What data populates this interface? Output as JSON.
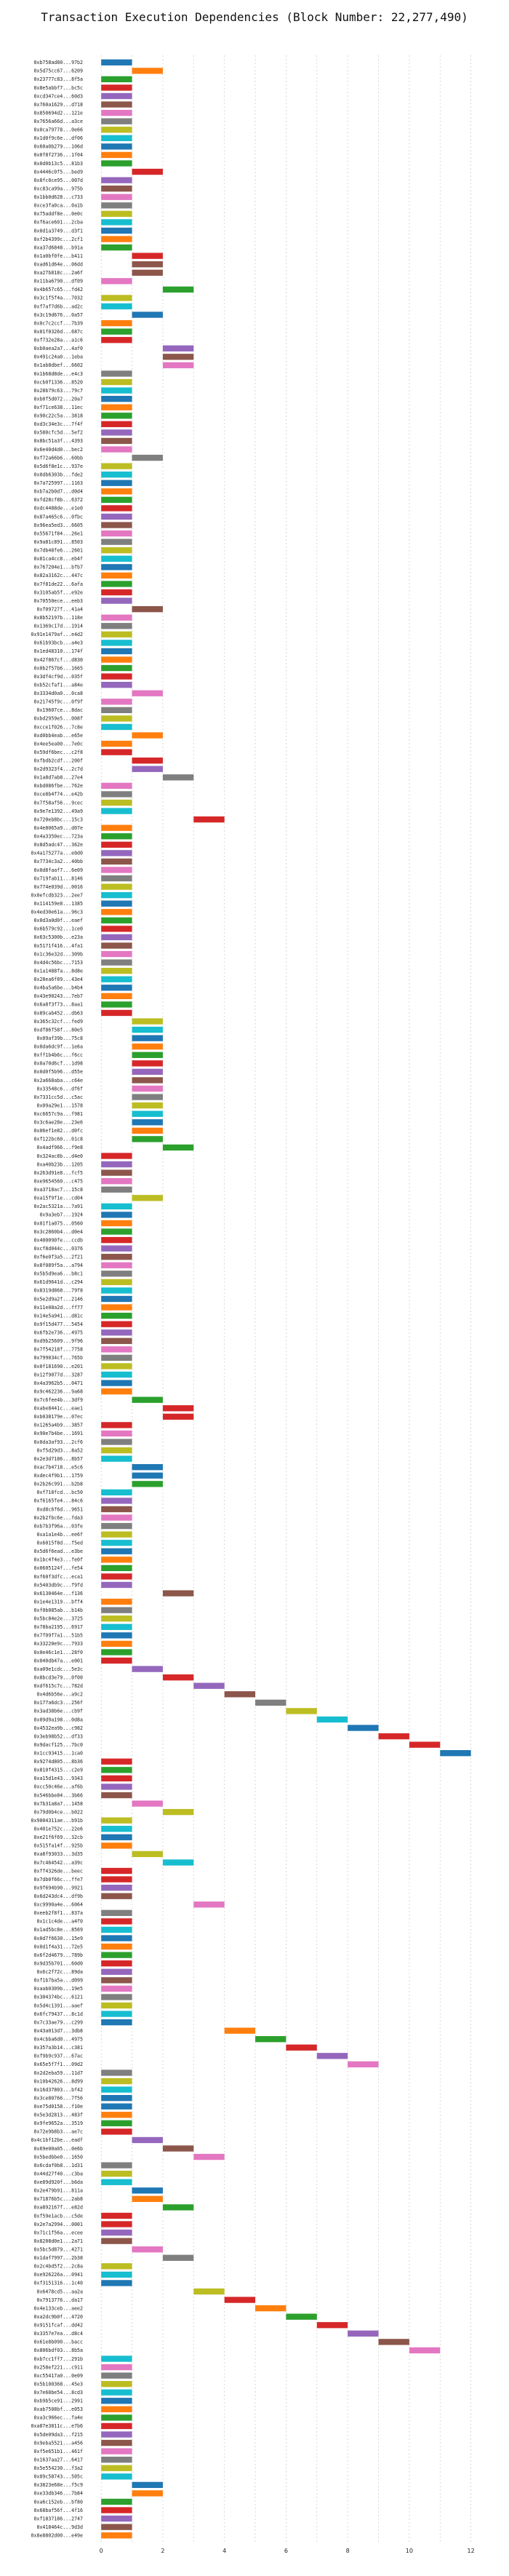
{
  "chart_data": {
    "type": "bar",
    "orientation": "horizontal-gantt",
    "title": "Transaction Execution Dependencies (Block Number: 22,277,490)",
    "xlabel": "",
    "ylabel": "",
    "xlim": [
      -0.5,
      13
    ],
    "xticks": [
      0,
      2,
      4,
      6,
      8,
      10,
      12
    ],
    "grid": true,
    "legend": "none",
    "bar_duration": 1,
    "colors": [
      "#1f77b4",
      "#ff7f0e",
      "#2ca02c",
      "#d62728",
      "#9467bd",
      "#8c564b",
      "#e377c2",
      "#7f7f7f",
      "#bcbd22",
      "#17becf"
    ],
    "tx_labels": [
      "0xb758ad80...97b2",
      "0x5d75cc67...6209",
      "0x23777c83...8f5a",
      "0x8e5abbf7...bc5c",
      "0xcd347ce4...60d3",
      "0x760a1629...d718",
      "0x850694d2...121e",
      "0x7656a66d...a3ce",
      "0x0ca79778...0e66",
      "0x1d0f9c6e...df06",
      "0x60a0b279...106d",
      "0x0f8f2736...1f04",
      "0x0d0b13c5...81b3",
      "0x4446c0f5...bed9",
      "0x8fc0ce95...007d",
      "0xc83ca99a...975b",
      "0x1bb0d628...c733",
      "0xce3fa0ca...0a1b",
      "0x75addf8e...0e0c",
      "0xf6ace601...2cba",
      "0x0d1a3749...d3f1",
      "0xf2b4399c...2cf1",
      "0xa37d6848...b91a",
      "0x1a0bf0fe...b411",
      "0xad61d64e...06dd",
      "0xa27b818c...2a6f",
      "0x11ba6790...df09",
      "0x4b657c65...fd42",
      "0x3c1f5f4a...7032",
      "0xf7af7d6b...ad2c",
      "0x3c19d676...0a57",
      "0x0c7c2ccf...7b39",
      "0x01f0326d...687c",
      "0xf732e28a...a1c6",
      "0xb0aea2a7...4af0",
      "0x491c24a0...1eba",
      "0x1ab8dbef...6602",
      "0x1b68d8de...e4c3",
      "0xcb0f1336...8520",
      "0x28b79c63...79c7",
      "0xb0f5d072...20a7",
      "0xf71ce638...11ec",
      "0x90c22c5a...3818",
      "0xd3c34e3c...7f4f",
      "0x580cfc5d...5ef2",
      "0x8bc51a3f...4393",
      "0x6e40d4d0...bec2",
      "0xf72a66b6...60bb",
      "0x5d6f8e1c...937e",
      "0x0db6303b...fde2",
      "0x7a725997...1163",
      "0xb7a2b0d7...d0d4",
      "0xfd28cf8b...6372",
      "0xdc4488de...e1e0",
      "0x87a465c6...0fbc",
      "0x96ea5ed3...6605",
      "0x55671f84...26e1",
      "0x9a81c891...8503",
      "0x7db48fe6...2601",
      "0x81ca4cc8...eb4f",
      "0x767204e1...bfb7",
      "0x82a3162c...447c",
      "0x7f81de22...6afa",
      "0x3105ab5f...e92e",
      "0x70550ece...eeb3",
      "0xf09727f...41a4",
      "0x8b52197b...118e",
      "0x1369c17d...1914",
      "0x91e1479af...e4d2",
      "0x61b93bcb...a4e3",
      "0x1ed48310...174f",
      "0x42f867cf...d830",
      "0x0b2f57b6...1665",
      "0x3df4cf9d...035f",
      "0xb52cfaf1...a84e",
      "0x3334d0a0...0ca8",
      "0x21745f9c...0f9f",
      "0x19607ce...8dac",
      "0xbd2959e5...008f",
      "0xcce1f026...7c8e",
      "0xd0bb4eab...e65e",
      "0x4ee5ea00...7e0c",
      "0x59df6bec...c2f8",
      "0xfbdb2cdf...200f",
      "0x2d9323f4...2c7d",
      "0x1a8d7ab8...27e4",
      "0xbd086fbe...762e",
      "0xce8b4f74...e42b",
      "0x7f58af56...9cec",
      "0x9e7e1392...49a9",
      "0x720eb8bc...15c3",
      "0x4e8065a9...d07e",
      "0x4a3350ec...723a",
      "0x8d5adc47...362e",
      "0x4a175277a...e0d0",
      "0x7734c3a2...40bb",
      "0x0d8faaf7...6e09",
      "0x719fab11...8146",
      "0x774e039d...0016",
      "0x0efcdb323...2ee7",
      "0x114159e8...1385",
      "0x4ed30e61a...96c3",
      "0x0d3a0d0f...eaef",
      "0x6b579c92...1ce0",
      "0x63c5300b...e23a",
      "0x5171f416...4fa1",
      "0x1c36e32d...309b",
      "0x4d4c56bc...7153",
      "0x1a1488fa...8d8e",
      "0x28ea6f89...43e4",
      "0x4ba5a6be...b4b4",
      "0x43e90243...7eb7",
      "0x6a8f3f73...8aa1",
      "0x89cab452...db63",
      "0x365c32cf...fed9",
      "0xdf86f58f...80e5",
      "0x09af39b...75c8",
      "0x0da6dc9f...1e6a",
      "0xff1b4b6c...f6cc",
      "0x0a70d6cf...1d98",
      "0x0d0f5b96...d55e",
      "0x2a668aba...c64e",
      "0x33548c6...df6f",
      "0x7331cc5d...c5ac",
      "0x09a29e1...1578",
      "0xc6657c9a...f981",
      "0x3c6ae28e...23e6",
      "0x06ef1e82...d0fc",
      "0xf122bc60...01c8",
      "0x4adf966...f9e8",
      "0x324ac8b...d4e0",
      "0xa40b23b...1205",
      "0x263d91e8...fcf5",
      "0xe9654560...c475",
      "0xa3718ac7...15c8",
      "0xa15f9f1e...cd04",
      "0x2ac5321a...7a91",
      "0x9a3eb7...1924",
      "0x01f1a075...0560",
      "0x3c2860b4...d0e4",
      "0x400090fe...ccdb",
      "0xcf8d044c...0376",
      "0xf6e0f3a5...2f21",
      "0x8f089f5a...a794",
      "0x5b5d9ea6...b8c1",
      "0x61d9641d...c294",
      "0x8319d868...79f8",
      "0x5e2d9a2f...2146",
      "0x11e08a2d...ff77",
      "0x14e5a941...d81c",
      "0x9f15d477...5454",
      "0x6fb2e736...4975",
      "0xd9b25609...9f96",
      "0x7f54218f...7758",
      "0x799034cf...765b",
      "0x0f181690...e201",
      "0x12f9077d...3287",
      "0x4a3962b5...0471",
      "0x9c462236...9a68",
      "0x7c6fee4b...3df9",
      "0xabe8441c...eae1",
      "0xb038179e...07ec",
      "0x1265a4b9...3857",
      "0x90e7b4be...1691",
      "0x0da3af93...2cf6",
      "0xf5d29d3...8a52",
      "0x2e3d7186...8b57",
      "0xac7b4718...e5c6",
      "0xdec4f9b1...1759",
      "0x2b26c991...b2b8",
      "0xf718fcd...bc50",
      "0xf6165fe4...84c6",
      "0xd8c6f6d...9651",
      "0x2b2fbc6e...fda3",
      "0xb7b3f96a...03fe",
      "0xa1a1e4b...ee6f",
      "0x6015f8d...f5ed",
      "0x5d6f6ead...e3be",
      "0x1bc4f4e3...fe0f",
      "0x0605124f...fe54",
      "0xf60f3dfc...eca1",
      "0x5403db9c...f9fd",
      "0x6130464e...f136",
      "0x1e4e1319...bff4",
      "0xf0b085ab...b14b",
      "0x5bc84e2e...3725",
      "0x78ba2195...6917",
      "0x7f09f7a1...51b5",
      "0x33220e9c...7933",
      "0x0e46c1e1...28f0",
      "0x040db47a...e001",
      "0xa09e1cdc...5e3c",
      "0x8bcd3e79...0f00",
      "0xdf615c7c...782d",
      "0x4d6b56e...a9c2",
      "0x177a6dc3...256f",
      "0x3ad38b6e...cb9f",
      "0x09d9a198...0d8a",
      "0x4532ea9b...c982",
      "0x3eb98b52...df33",
      "0x9dacf125...7bc0",
      "0x1cc93415...1ca0",
      "0x9274d805...8b36",
      "0x810f4315...c2e9",
      "0xa15d1e43...9343",
      "0xcc50c46e...af6b",
      "0x546bbe84...3b66",
      "0x7b31a8a7...1458",
      "0x79d0b4ce...b022",
      "0x9004311ae...b91b",
      "0x401e752c...22e6",
      "0xe21f6f69...32cb",
      "0x515fa14f...925b",
      "0xa8f93033...3d35",
      "0x7c464542...a39c",
      "0xff4326de...beec",
      "0x7db0f66c...ffe7",
      "0x9f694b90...9921",
      "0x6d243dc4...df9b",
      "0xc9990a4e...6064",
      "0xeeb2f8f1...837a",
      "0x1c1c4de...a4f0",
      "0x1ad5bc8e...8569",
      "0x0d7f6630...15e9",
      "0x0d1f4a31...72e5",
      "0x6f2d4679...789b",
      "0x9d35b701...60d0",
      "0x6c2f72c...89da",
      "0xf1b7ba5a...d099",
      "0xaab0309b...19e5",
      "0x304374bc...6121",
      "0x5d4c1391...aaef",
      "0x6fc79437...8c1d",
      "0x7c33ae79...c299",
      "0x43a013d7...3db8",
      "0x4cbba6d0...4975",
      "0x357a3b14...c381",
      "0xf9b9c937...67ac",
      "0x65e5f7f1...09d2",
      "0x2d2eba59...11d7",
      "0x10b42626...8d99",
      "0x16d37803...bf42",
      "0x3ce80766...7f56",
      "0xe75d0158...f10e",
      "0x5e3d2813...483f",
      "0x9fe9652a...3519",
      "0x72e9b8b3...ae7c",
      "0x4c1bf12be...eadf",
      "0x69e00a05...0e6b",
      "0x5bedbbe0...1650",
      "0x6cdaf0b8...1d31",
      "0x44d27f40...c3ba",
      "0xe89d920f...b6da",
      "0x2e479b91...811a",
      "0x71876b5c...2ab8",
      "0xa892167f...e82d",
      "0xf59e1acb...c5de",
      "0x2e7a2994...0001",
      "0x71c1f56a...ecee",
      "0x8208d0e1...2a71",
      "0x5bc5d879...4271",
      "0x1daf7997...2b38",
      "0x2c4bd5f2...2c8a",
      "0xe926226a...0941",
      "0xf3151316...1c40",
      "0x6478cd5...aa2a",
      "0x7913776...da17",
      "0x4e133ceb...aee2",
      "0xa2dc9b0f...4720",
      "0x9151fcaf...dd42",
      "0x3357e7ea...d8c4",
      "0x61e8b090...bacc",
      "0x806bdf03...8b5a",
      "0xb7cc1ff7...291b",
      "0x258ef221...c911",
      "0xc55417a0...0e09",
      "0x5b100368...45e3",
      "0x7e68be54...8cd3",
      "0xb9b5ce91...2991",
      "0xab7508bf...e053",
      "0xa3c966ec...fa4e",
      "0xa87e3811c...e7b6",
      "0x5de09da3...f215",
      "0x9eba5521...a456",
      "0xf5e651b1...461f",
      "0x1637aa27...6417",
      "0x5e554230...f3a2",
      "0x09c58743...505c",
      "0x3823e68e...f5c9",
      "0xe33db346...7b84",
      "0xa6c152eb...bf80",
      "0x68baf56f...4f16",
      "0xf1837186...2747",
      "0x418464c...9d3d",
      "0x8e8802d00...e49e"
    ],
    "start_times": [
      0,
      1,
      0,
      0,
      0,
      0,
      0,
      0,
      0,
      0,
      0,
      0,
      0,
      1,
      0,
      0,
      0,
      0,
      0,
      0,
      0,
      0,
      0,
      1,
      1,
      1,
      0,
      2,
      0,
      0,
      1,
      0,
      0,
      0,
      2,
      2,
      2,
      0,
      0,
      0,
      0,
      0,
      0,
      0,
      0,
      0,
      0,
      1,
      0,
      0,
      0,
      0,
      0,
      0,
      0,
      0,
      0,
      0,
      0,
      0,
      0,
      0,
      0,
      0,
      0,
      1,
      0,
      0,
      0,
      0,
      0,
      0,
      0,
      0,
      0,
      1,
      0,
      0,
      0,
      0,
      1,
      0,
      0,
      1,
      1,
      2,
      0,
      0,
      0,
      0,
      3,
      0,
      0,
      0,
      0,
      0,
      0,
      0,
      0,
      0,
      0,
      0,
      0,
      0,
      0,
      0,
      0,
      0,
      0,
      0,
      0,
      0,
      0,
      0,
      1,
      1,
      1,
      1,
      1,
      1,
      1,
      1,
      1,
      1,
      1,
      1,
      1,
      1,
      1,
      2,
      0,
      0,
      0,
      0,
      0,
      1,
      0,
      0,
      0,
      0,
      0,
      0,
      0,
      0,
      0,
      0,
      0,
      0,
      0,
      0,
      0,
      0,
      0,
      0,
      0,
      0,
      0,
      0,
      0,
      1,
      2,
      2,
      0,
      0,
      0,
      0,
      0,
      1,
      1,
      1,
      0,
      0,
      0,
      0,
      0,
      0,
      0,
      0,
      0,
      0,
      0,
      0,
      2,
      0,
      0,
      0,
      0,
      0,
      0,
      0,
      0,
      1,
      2,
      3,
      4,
      5,
      6,
      7,
      8,
      9,
      10,
      11,
      0,
      0,
      0,
      0,
      0,
      1,
      2,
      0,
      0,
      0,
      0,
      1,
      2,
      0,
      0,
      0,
      0,
      3,
      0,
      0,
      0,
      0,
      0,
      0,
      0,
      0,
      0,
      0,
      0,
      0,
      0,
      0,
      4,
      5,
      6,
      7,
      8,
      0,
      0,
      0,
      0,
      0,
      0,
      0,
      0,
      1,
      2,
      3,
      0,
      0,
      0,
      1,
      1,
      2,
      0,
      0,
      0,
      0,
      1,
      2,
      0,
      0,
      0,
      3,
      4,
      5,
      6,
      7,
      8,
      9,
      10,
      0,
      0,
      0,
      0,
      0,
      0,
      0,
      0,
      0,
      0,
      0,
      0,
      0,
      0,
      0,
      1,
      1,
      0
    ],
    "bar_colors": [
      0,
      1,
      2,
      3,
      4,
      5,
      6,
      7,
      8,
      9,
      0,
      1,
      2,
      3,
      4,
      5,
      6,
      7,
      8,
      9,
      0,
      1,
      2,
      3,
      5,
      5,
      6,
      2,
      8,
      9,
      0,
      1,
      2,
      3,
      4,
      5,
      6,
      7,
      8,
      9,
      0,
      1,
      2,
      3,
      4,
      5,
      6,
      7,
      8,
      9,
      0,
      1,
      2,
      3,
      4,
      5,
      6,
      7,
      8,
      9,
      0,
      1,
      2,
      3,
      4,
      5,
      6,
      7,
      8,
      9,
      0,
      1,
      2,
      3,
      4,
      6,
      6,
      7,
      8,
      9,
      1,
      1,
      3,
      3,
      4,
      7,
      6,
      7,
      8,
      9,
      3,
      1,
      2,
      3,
      4,
      5,
      6,
      7,
      8,
      9,
      0,
      1,
      2,
      3,
      4,
      5,
      6,
      7,
      8,
      9,
      0,
      1,
      2,
      3,
      8,
      9,
      0,
      1,
      2,
      3,
      4,
      5,
      6,
      7,
      8,
      9,
      0,
      1,
      2,
      2,
      3,
      4,
      5,
      6,
      7,
      8,
      9,
      0,
      1,
      2,
      3,
      4,
      5,
      6,
      7,
      8,
      9,
      0,
      1,
      2,
      3,
      4,
      5,
      6,
      7,
      8,
      9,
      0,
      1,
      2,
      3,
      3,
      3,
      6,
      7,
      8,
      9,
      0,
      0,
      2,
      9,
      4,
      5,
      6,
      7,
      8,
      9,
      0,
      1,
      2,
      3,
      4,
      5,
      1,
      7,
      8,
      9,
      0,
      1,
      2,
      3,
      4,
      3,
      4,
      5,
      7,
      8,
      9,
      0,
      3,
      3,
      0,
      3,
      2,
      3,
      4,
      5,
      6,
      8,
      8,
      9,
      0,
      1,
      8,
      9,
      3,
      3,
      4,
      5,
      6,
      7,
      3,
      9,
      0,
      1,
      2,
      3,
      4,
      5,
      6,
      7,
      8,
      9,
      0,
      1,
      2,
      3,
      4,
      6,
      7,
      8,
      9,
      0,
      0,
      1,
      2,
      3,
      4,
      5,
      6,
      7,
      8,
      9,
      0,
      1,
      2,
      3,
      3,
      4,
      5,
      6,
      7,
      8,
      9,
      0,
      8,
      3,
      1,
      2,
      3,
      4,
      5,
      6,
      9,
      6,
      7,
      8,
      9,
      0,
      1,
      2,
      3,
      4,
      5,
      6,
      7,
      8,
      9,
      0,
      1,
      2,
      3,
      4,
      5,
      1,
      4,
      3,
      4,
      5
    ]
  }
}
